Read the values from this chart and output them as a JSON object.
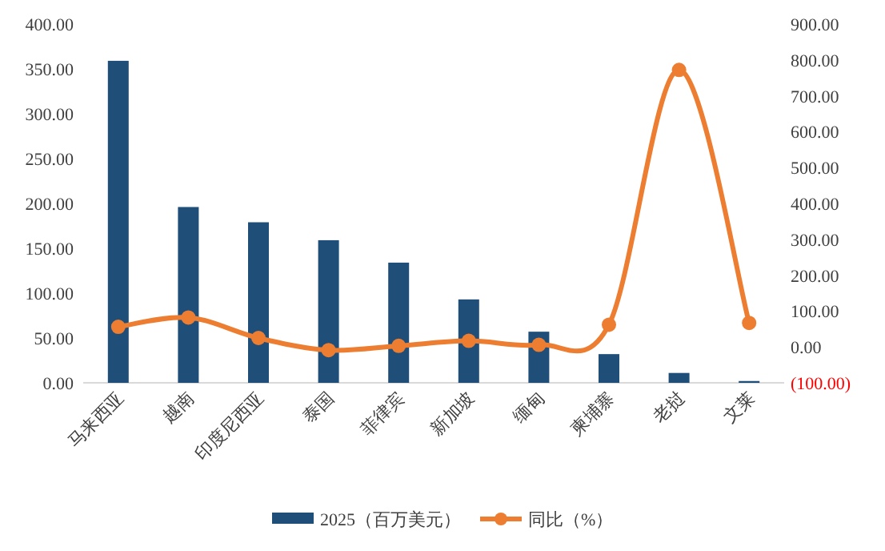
{
  "chart_data": {
    "type": "bar",
    "categories": [
      "马来西亚",
      "越南",
      "印度尼西亚",
      "泰国",
      "菲律宾",
      "新加坡",
      "缅甸",
      "柬埔寨",
      "老挝",
      "文莱"
    ],
    "series": [
      {
        "name": "2025（百万美元）",
        "color": "#1f4e79",
        "values": [
          359,
          196,
          179,
          159,
          134,
          93,
          57,
          32,
          11,
          2
        ]
      },
      {
        "name": "同比（%）",
        "type": "line",
        "axis": "y2",
        "color": "#ed7d31",
        "marker": "circle",
        "values": [
          56,
          82,
          25,
          -9,
          3,
          17,
          6,
          62,
          772,
          67
        ]
      }
    ],
    "ylim": [
      0,
      400
    ],
    "yticks": [
      {
        "value": 0,
        "label": "0.00"
      },
      {
        "value": 50,
        "label": "50.00"
      },
      {
        "value": 100,
        "label": "100.00"
      },
      {
        "value": 150,
        "label": "150.00"
      },
      {
        "value": 200,
        "label": "200.00"
      },
      {
        "value": 250,
        "label": "250.00"
      },
      {
        "value": 300,
        "label": "300.00"
      },
      {
        "value": 350,
        "label": "350.00"
      },
      {
        "value": 400,
        "label": "400.00"
      }
    ],
    "y2lim": [
      -100,
      900
    ],
    "y2ticks": [
      {
        "value": -100,
        "label": "(100.00)"
      },
      {
        "value": 0,
        "label": "0.00"
      },
      {
        "value": 100,
        "label": "100.00"
      },
      {
        "value": 200,
        "label": "200.00"
      },
      {
        "value": 300,
        "label": "300.00"
      },
      {
        "value": 400,
        "label": "400.00"
      },
      {
        "value": 500,
        "label": "500.00"
      },
      {
        "value": 600,
        "label": "600.00"
      },
      {
        "value": 700,
        "label": "700.00"
      },
      {
        "value": 800,
        "label": "800.00"
      },
      {
        "value": 900,
        "label": "900.00"
      }
    ],
    "legend": "bottom",
    "grid": false
  }
}
